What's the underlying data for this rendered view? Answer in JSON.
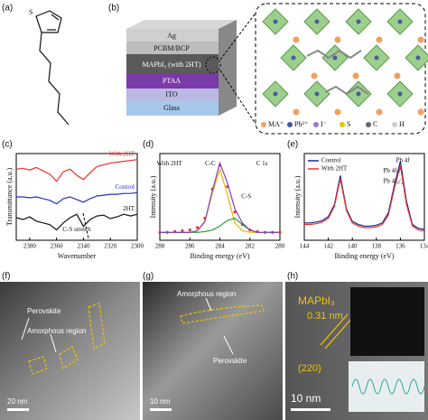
{
  "panel_labels": [
    "(a)",
    "(b)",
    "(c)",
    "(d)",
    "(e)",
    "(f)",
    "(g)",
    "(h)"
  ],
  "stack_layers": [
    "Ag",
    "PCBM/BCP",
    "MAPbI₃ (with 2HT)",
    "PTAA",
    "ITO",
    "Glass"
  ],
  "structure_legend": [
    "MA⁺",
    "Pb²⁺",
    "I⁻",
    "S",
    "C",
    "H"
  ],
  "chart_data": [
    {
      "type": "line",
      "xlabel": "Wavenumber",
      "ylabel": "Transmittance (a.u.)",
      "legend": "inline",
      "annotations": [
        "C-S stretch"
      ],
      "xlim": [
        2390,
        2300
      ],
      "xticks": [
        2380,
        2360,
        2340,
        2320,
        2300
      ],
      "ylim": [
        0,
        10
      ],
      "x": [
        2390,
        2385,
        2380,
        2375,
        2370,
        2365,
        2360,
        2355,
        2350,
        2345,
        2340,
        2335,
        2330,
        2325,
        2320,
        2315,
        2310,
        2305,
        2300
      ],
      "series": [
        {
          "name": "With 2HT",
          "color": "#e8332b",
          "values": [
            8.2,
            8.3,
            8.1,
            8.4,
            8.0,
            7.6,
            6.8,
            7.9,
            8.2,
            7.5,
            7.0,
            7.8,
            8.5,
            8.7,
            8.9,
            9.0,
            9.1,
            9.2,
            9.3
          ]
        },
        {
          "name": "Control",
          "color": "#2233bb",
          "values": [
            5.0,
            5.0,
            4.9,
            5.0,
            4.8,
            4.6,
            4.2,
            4.8,
            5.0,
            4.7,
            4.4,
            4.8,
            5.1,
            5.2,
            5.3,
            5.3,
            5.4,
            5.4,
            5.5
          ]
        },
        {
          "name": "2HT",
          "color": "#111111",
          "values": [
            2.6,
            2.4,
            2.7,
            2.2,
            2.0,
            1.8,
            1.2,
            2.0,
            2.6,
            3.0,
            1.6,
            2.4,
            2.8,
            2.9,
            2.5,
            2.7,
            3.0,
            2.8,
            3.0
          ]
        }
      ]
    },
    {
      "type": "line",
      "xlabel": "Binding energy (eV)",
      "ylabel": "Intensity (a.u.)",
      "annotations": [
        "With 2HT",
        "C 1s",
        "C-C",
        "C-S"
      ],
      "xlim": [
        288,
        280
      ],
      "xticks": [
        288,
        286,
        284,
        282,
        280
      ],
      "ylim": [
        0,
        11
      ],
      "x": [
        288,
        287.5,
        287,
        286.5,
        286,
        285.5,
        285,
        284.5,
        284,
        283.5,
        283,
        282.5,
        282,
        281.5,
        281,
        280.5,
        280
      ],
      "series": [
        {
          "color": "#e8332b",
          "marker": "points",
          "values": [
            1.0,
            1.0,
            1.1,
            1.2,
            1.3,
            1.6,
            2.8,
            6.5,
            9.5,
            6.8,
            3.6,
            2.0,
            1.3,
            1.1,
            1.0,
            1.0,
            1.0
          ]
        },
        {
          "color": "#e8b400",
          "values": [
            1.0,
            1.0,
            1.0,
            1.0,
            1.0,
            1.2,
            2.3,
            6.0,
            9.0,
            5.8,
            2.2,
            1.2,
            1.0,
            1.0,
            1.0,
            1.0,
            1.0
          ]
        },
        {
          "color": "#2a9a3a",
          "values": [
            1.0,
            1.0,
            1.0,
            1.0,
            1.0,
            1.0,
            1.1,
            1.3,
            1.8,
            2.5,
            2.8,
            2.0,
            1.3,
            1.0,
            1.0,
            1.0,
            1.0
          ]
        },
        {
          "color": "#8a3fc0",
          "values": [
            1.0,
            1.0,
            1.0,
            1.0,
            1.0,
            1.2,
            2.4,
            6.3,
            9.8,
            7.3,
            4.0,
            2.2,
            1.3,
            1.0,
            1.0,
            1.0,
            1.0
          ]
        }
      ]
    },
    {
      "type": "line",
      "xlabel": "Binding energy (eV)",
      "ylabel": "Intensity (a.u.)",
      "legend": "upper left",
      "annotations": [
        "Pb 4f",
        "Pb 4f₇/₂",
        "Pb 4f₅/₂"
      ],
      "xlim": [
        144,
        134
      ],
      "xticks": [
        144,
        142,
        140,
        138,
        136,
        134
      ],
      "ylim": [
        0,
        11
      ],
      "x": [
        144,
        143.5,
        143,
        142.5,
        142,
        141.5,
        141,
        140.5,
        140,
        139.5,
        139,
        138.5,
        138,
        137.5,
        137,
        136.5,
        136,
        135.5,
        135,
        134.5,
        134
      ],
      "series": [
        {
          "name": "Control",
          "color": "#1a2a9a",
          "values": [
            2.2,
            2.2,
            2.3,
            2.5,
            3.0,
            4.5,
            8.2,
            4.0,
            2.4,
            2.0,
            1.8,
            1.8,
            1.9,
            2.2,
            3.5,
            7.0,
            10.0,
            5.0,
            2.0,
            1.5,
            1.4
          ]
        },
        {
          "name": "With 2HT",
          "color": "#e8332b",
          "values": [
            2.0,
            2.0,
            2.1,
            2.3,
            2.8,
            4.3,
            7.8,
            3.8,
            2.2,
            1.8,
            1.6,
            1.6,
            1.7,
            2.0,
            3.2,
            6.6,
            9.5,
            4.6,
            1.8,
            1.3,
            1.2
          ]
        }
      ]
    }
  ],
  "micrographs": [
    {
      "labels": [
        "Perovskite",
        "Amorphous region"
      ],
      "scale_bar": "20 nm"
    },
    {
      "labels": [
        "Amorphous region",
        "Perovskite"
      ],
      "scale_bar": "10 nm"
    },
    {
      "labels": [
        "MAPbI₃",
        "0.31 nm",
        "(220)"
      ],
      "scale_bar": "10 nm"
    }
  ]
}
